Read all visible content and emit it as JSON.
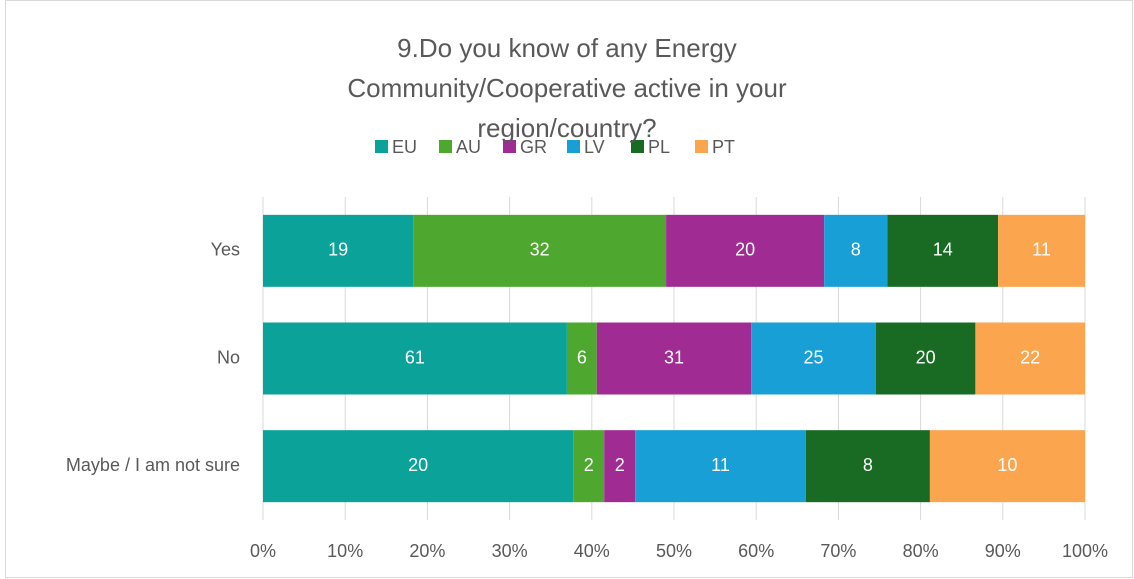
{
  "chart_data": {
    "type": "bar",
    "orientation": "horizontal",
    "stacking": "percent",
    "title": "9.Do you know of any Energy Community/Cooperative active in your region/country?",
    "categories": [
      "Yes",
      "No",
      "Maybe / I am not sure"
    ],
    "series": [
      {
        "name": "EU",
        "color": "#0ba29a",
        "values": [
          19,
          61,
          20
        ]
      },
      {
        "name": "AU",
        "color": "#4ea72e",
        "values": [
          32,
          6,
          2
        ]
      },
      {
        "name": "GR",
        "color": "#a02b93",
        "values": [
          20,
          31,
          2
        ]
      },
      {
        "name": "LV",
        "color": "#179fd6",
        "values": [
          8,
          25,
          11
        ]
      },
      {
        "name": "PL",
        "color": "#196b24",
        "values": [
          14,
          20,
          8
        ]
      },
      {
        "name": "PT",
        "color": "#fba64f",
        "values": [
          11,
          22,
          10
        ]
      }
    ],
    "xlim": [
      0,
      100
    ],
    "xticks": [
      {
        "value": 0,
        "label": "0%"
      },
      {
        "value": 10,
        "label": "10%"
      },
      {
        "value": 20,
        "label": "20%"
      },
      {
        "value": 30,
        "label": "30%"
      },
      {
        "value": 40,
        "label": "40%"
      },
      {
        "value": 50,
        "label": "50%"
      },
      {
        "value": 60,
        "label": "60%"
      },
      {
        "value": 70,
        "label": "70%"
      },
      {
        "value": 80,
        "label": "80%"
      },
      {
        "value": 90,
        "label": "90%"
      },
      {
        "value": 100,
        "label": "100%"
      }
    ],
    "grid": true,
    "legend": "top"
  }
}
